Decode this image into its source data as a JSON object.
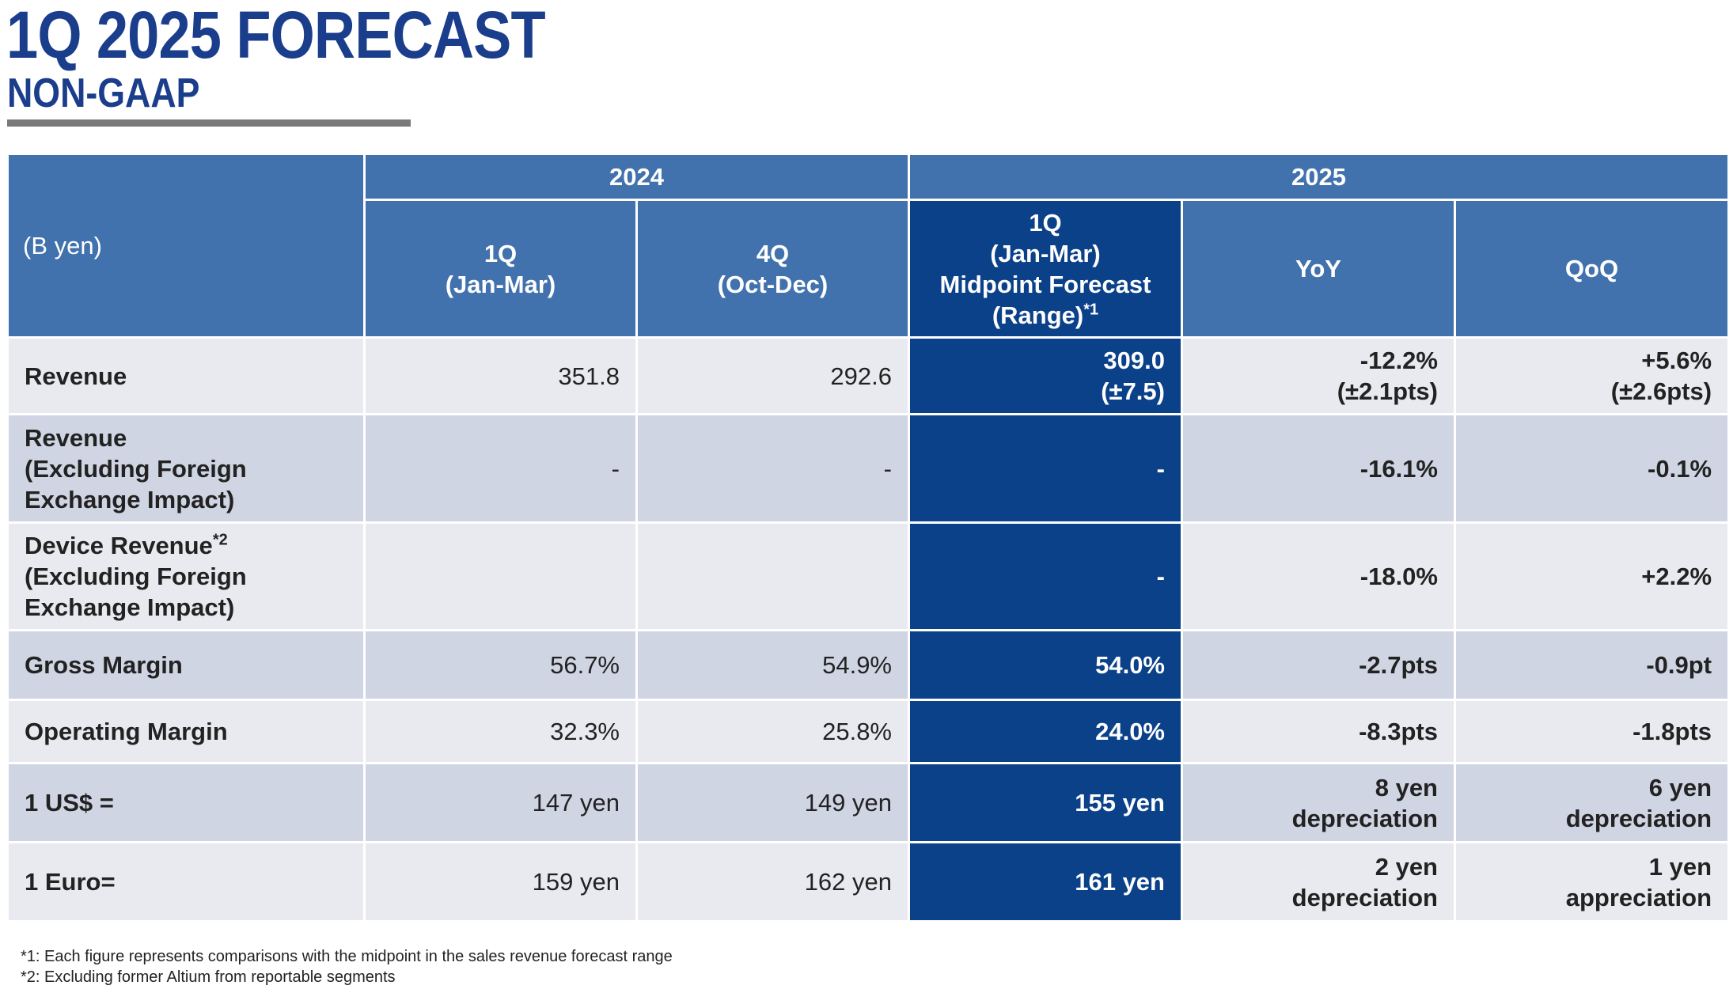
{
  "header": {
    "title": "1Q 2025 FORECAST",
    "subtitle": "NON-GAAP"
  },
  "table": {
    "unit_label": "(B yen)",
    "year_2024": "2024",
    "year_2025": "2025",
    "col_1q_2024": [
      "1Q",
      "(Jan-Mar)"
    ],
    "col_4q_2024": [
      "4Q",
      "(Oct-Dec)"
    ],
    "col_forecast": [
      "1Q",
      "(Jan-Mar)",
      "Midpoint Forecast",
      "(Range)",
      "*1"
    ],
    "col_yoy": "YoY",
    "col_qoq": "QoQ",
    "rows": [
      {
        "label": [
          "Revenue"
        ],
        "q1_2024": "351.8",
        "q4_2024": "292.6",
        "forecast": [
          "309.0",
          "(±7.5)"
        ],
        "yoy": [
          "-12.2%",
          "(±2.1pts)"
        ],
        "qoq": [
          "+5.6%",
          "(±2.6pts)"
        ]
      },
      {
        "label": [
          "Revenue",
          "(Excluding Foreign",
          "Exchange Impact)"
        ],
        "q1_2024": "-",
        "q4_2024": "-",
        "forecast": [
          "-"
        ],
        "yoy": [
          "-16.1%"
        ],
        "qoq": [
          "-0.1%"
        ]
      },
      {
        "label": [
          "Device Revenue",
          "*2",
          "(Excluding Foreign",
          "Exchange Impact)"
        ],
        "q1_2024": "",
        "q4_2024": "",
        "forecast": [
          "-"
        ],
        "yoy": [
          "-18.0%"
        ],
        "qoq": [
          "+2.2%"
        ]
      },
      {
        "label": [
          "Gross Margin"
        ],
        "q1_2024": "56.7%",
        "q4_2024": "54.9%",
        "forecast": [
          "54.0%"
        ],
        "yoy": [
          "-2.7pts"
        ],
        "qoq": [
          "-0.9pt"
        ]
      },
      {
        "label": [
          "Operating Margin"
        ],
        "q1_2024": "32.3%",
        "q4_2024": "25.8%",
        "forecast": [
          "24.0%"
        ],
        "yoy": [
          "-8.3pts"
        ],
        "qoq": [
          "-1.8pts"
        ]
      },
      {
        "label": [
          "1 US$ ="
        ],
        "q1_2024": "147 yen",
        "q4_2024": "149 yen",
        "forecast": [
          "155 yen"
        ],
        "yoy": [
          "8 yen",
          "depreciation"
        ],
        "qoq": [
          "6 yen",
          "depreciation"
        ]
      },
      {
        "label": [
          "1 Euro="
        ],
        "q1_2024": "159 yen",
        "q4_2024": "162 yen",
        "forecast": [
          "161 yen"
        ],
        "yoy": [
          "2 yen",
          "depreciation"
        ],
        "qoq": [
          "1 yen",
          "appreciation"
        ]
      }
    ]
  },
  "footnotes": [
    "*1: Each figure represents comparisons with the midpoint in the sales revenue forecast range",
    "*2: Excluding former Altium from reportable segments"
  ]
}
